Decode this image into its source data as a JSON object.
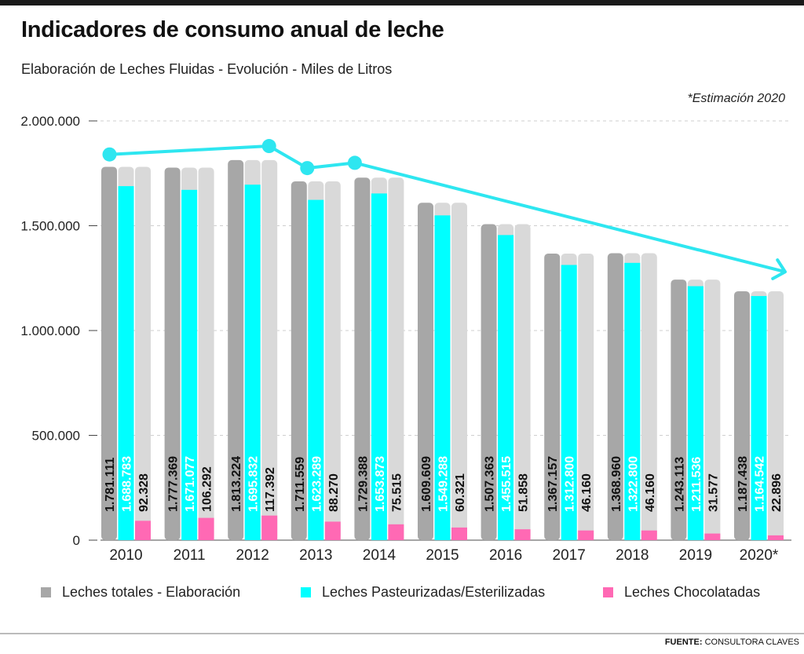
{
  "title": "Indicadores de consumo anual de leche",
  "subtitle": "Elaboración de Leches Fluidas - Evolución - Miles de Litros",
  "note": "*Estimación 2020",
  "source_label": "FUENTE:",
  "source_name": "CONSULTORA CLAVES",
  "colors": {
    "total": "#a7a7a7",
    "pasteurizadas": "#00ffff",
    "chocolatadas": "#ff69b4",
    "ghost": "#d9d9d9",
    "trend": "#2ee6f0"
  },
  "chart_data": {
    "type": "bar",
    "categories": [
      "2010",
      "2011",
      "2012",
      "2013",
      "2014",
      "2015",
      "2016",
      "2017",
      "2018",
      "2019",
      "2020*"
    ],
    "series": [
      {
        "name": "Leches totales - Elaboración",
        "values": [
          1781111,
          1777369,
          1813224,
          1711559,
          1729388,
          1609609,
          1507363,
          1367157,
          1368960,
          1243113,
          1187438
        ],
        "labels": [
          "1.781.111",
          "1.777.369",
          "1.813.224",
          "1.711.559",
          "1.729.388",
          "1.609.609",
          "1.507.363",
          "1.367.157",
          "1.368.960",
          "1.243.113",
          "1.187.438"
        ]
      },
      {
        "name": "Leches Pasteurizadas/Esterilizadas",
        "values": [
          1688783,
          1671077,
          1695832,
          1623289,
          1653873,
          1549288,
          1455515,
          1312800,
          1322800,
          1211536,
          1164542
        ],
        "labels": [
          "1.688.783",
          "1.671.077",
          "1.695.832",
          "1.623.289",
          "1.653.873",
          "1.549.288",
          "1.455.515",
          "1.312.800",
          "1.322.800",
          "1.211.536",
          "1.164.542"
        ]
      },
      {
        "name": "Leches Chocolatadas",
        "values": [
          92328,
          106292,
          117392,
          88270,
          75515,
          60321,
          51858,
          46160,
          46160,
          31577,
          22896
        ],
        "labels": [
          "92.328",
          "106.292",
          "117.392",
          "88.270",
          "75.515",
          "60.321",
          "51.858",
          "46.160",
          "46.160",
          "31.577",
          "22.896"
        ]
      }
    ],
    "trend": {
      "values": [
        1840000,
        1840000,
        1880000,
        1775000,
        1800000
      ],
      "arrow_end_value": 1280000
    },
    "ylim": [
      0,
      2000000
    ],
    "yticks": [
      0,
      500000,
      1000000,
      1500000,
      2000000
    ],
    "ytick_labels": [
      "0",
      "500.000",
      "1.000.000",
      "1.500.000",
      "2.000.000"
    ],
    "grid": true,
    "legend_position": "bottom",
    "xlabel": "",
    "ylabel": ""
  }
}
